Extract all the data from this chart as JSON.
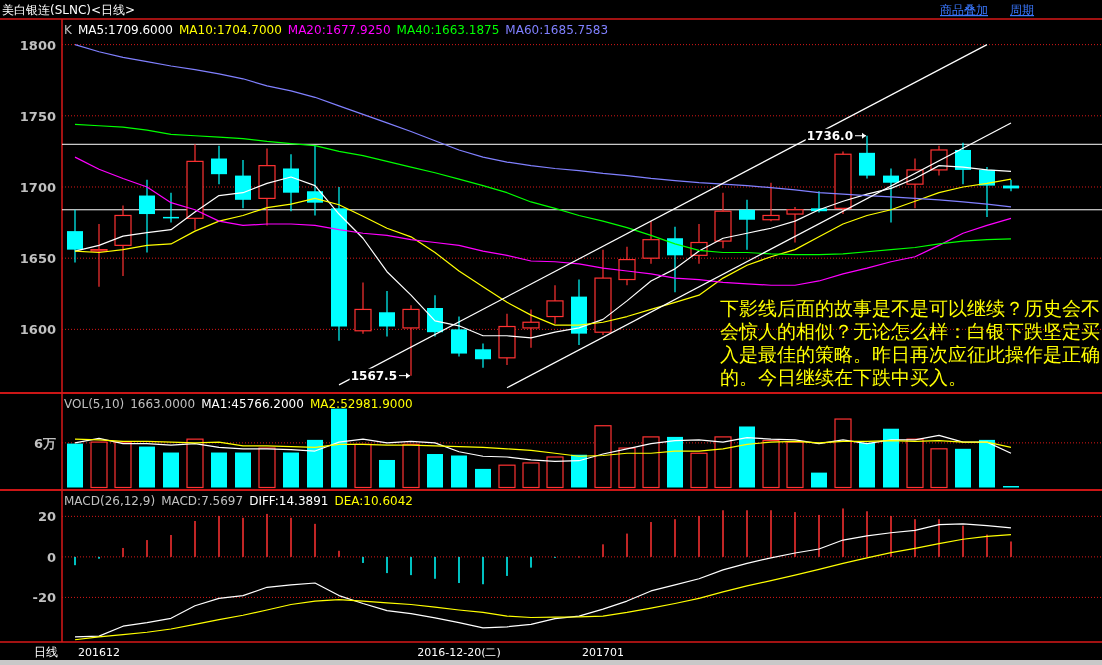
{
  "chart_data": [
    {
      "type": "candlestick",
      "title": "美白银连(SLNC)<日线>",
      "categories": [
        null,
        null,
        null,
        null,
        null,
        null,
        null,
        null,
        null,
        null,
        null,
        null,
        null,
        null,
        null,
        null,
        null,
        null,
        null,
        null,
        null,
        null,
        null,
        null,
        null,
        null,
        null,
        null,
        null,
        null,
        null,
        null,
        null,
        null,
        null,
        null,
        null,
        null,
        null,
        null
      ],
      "ylim": [
        1556,
        1818
      ],
      "yticks": [
        1600,
        1650,
        1700,
        1750,
        1800
      ],
      "grid": "y",
      "legend": "top left",
      "tick_labels": "y",
      "series": [
        {
          "type": "line",
          "name": "MA5:1709.6000",
          "color": "#ffffff",
          "values": [
            1655,
            1659,
            1665.5,
            1668,
            1670,
            1682.5,
            1694,
            1696,
            1702.5,
            1707,
            1701,
            1681,
            1664,
            1640.5,
            1624,
            1606,
            1602.5,
            1595.5,
            1595.5,
            1594,
            1598,
            1601,
            1607,
            1620,
            1634,
            1642.5,
            1655,
            1664,
            1667.5,
            1671,
            1676,
            1684,
            1690,
            1695,
            1699,
            1706,
            1715,
            1714,
            1712,
            1711
          ]
        },
        {
          "type": "line",
          "name": "MA10:1704.7000",
          "color": "#ffff00",
          "values": [
            1655,
            1654,
            1656,
            1659,
            1660,
            1669,
            1676,
            1680,
            1685.5,
            1688,
            1692,
            1687.5,
            1679.5,
            1671,
            1665,
            1654,
            1641,
            1630,
            1619,
            1610,
            1603,
            1603,
            1605,
            1609,
            1614,
            1619,
            1624,
            1636,
            1645,
            1651,
            1656,
            1665,
            1674,
            1680,
            1684,
            1690,
            1696,
            1700,
            1702.5,
            1705.5
          ]
        },
        {
          "type": "line",
          "name": "MA20:1677.9250",
          "color": "#ff00ff",
          "values": [
            1721,
            1712.5,
            1706,
            1700,
            1689,
            1684,
            1676,
            1673,
            1674,
            1674,
            1673,
            1670,
            1667.5,
            1666,
            1663,
            1661,
            1659,
            1655,
            1652,
            1648,
            1647.5,
            1646,
            1643,
            1641,
            1639,
            1636,
            1635,
            1633,
            1632,
            1631,
            1631,
            1634,
            1639,
            1643,
            1647.5,
            1651,
            1659,
            1667.5,
            1673,
            1678
          ]
        },
        {
          "type": "line",
          "name": "MA40:1663.1875",
          "color": "#00ff00",
          "values": [
            1744,
            1743,
            1742,
            1740,
            1737,
            1736,
            1735,
            1734,
            1732,
            1730.5,
            1729,
            1725,
            1722,
            1718,
            1714,
            1710,
            1705.5,
            1701,
            1696,
            1689.5,
            1685,
            1680,
            1676,
            1671.5,
            1666,
            1660,
            1655.5,
            1654,
            1654,
            1653,
            1652.5,
            1652.5,
            1653,
            1654.5,
            1656,
            1657.5,
            1660,
            1662,
            1663,
            1663.5
          ]
        },
        {
          "type": "line",
          "name": "MA60:1685.7583",
          "color": "#8080ff",
          "values": [
            1800,
            1795,
            1791,
            1788,
            1785,
            1782.5,
            1779.5,
            1776,
            1771,
            1767.5,
            1763,
            1757,
            1751,
            1745,
            1739,
            1732.5,
            1726,
            1721,
            1717.5,
            1715,
            1713,
            1711.5,
            1709.5,
            1708,
            1706,
            1704.5,
            1703,
            1702,
            1701,
            1699.5,
            1698,
            1696,
            1695,
            1694,
            1693,
            1692,
            1691,
            1689.5,
            1688,
            1686
          ]
        },
        {
          "type": "line",
          "color": "#ffffff",
          "values": [
            null,
            null,
            null,
            null,
            null,
            null,
            null,
            null,
            null,
            null,
            null,
            1561,
            null,
            null,
            null,
            null,
            null,
            null,
            null,
            null,
            null,
            null,
            null,
            null,
            null,
            null,
            null,
            null,
            null,
            null,
            null,
            null,
            null,
            null,
            null,
            null,
            null,
            null,
            1800,
            null
          ]
        },
        {
          "type": "line",
          "color": "#ffffff",
          "values": [
            null,
            null,
            null,
            null,
            null,
            null,
            null,
            null,
            null,
            null,
            null,
            null,
            null,
            null,
            null,
            null,
            null,
            null,
            1559,
            null,
            null,
            null,
            null,
            null,
            null,
            null,
            null,
            null,
            null,
            null,
            null,
            null,
            null,
            null,
            null,
            null,
            null,
            null,
            null,
            1745
          ]
        },
        {
          "colors": [
            "#00ffff",
            "#ff3232",
            "#ff3232",
            "#00ffff",
            "#00ffff",
            "#ff3232",
            "#00ffff",
            "#00ffff",
            "#ff3232",
            "#00ffff",
            "#00ffff",
            "#00ffff",
            "#ff3232",
            "#00ffff",
            "#ff3232",
            "#00ffff",
            "#00ffff",
            "#00ffff",
            "#ff3232",
            "#ff3232",
            "#ff3232",
            "#00ffff",
            "#ff3232",
            "#ff3232",
            "#ff3232",
            "#00ffff",
            "#ff3232",
            "#ff3232",
            "#00ffff",
            "#ff3232",
            "#ff3232",
            "#00ffff",
            "#ff3232",
            "#00ffff",
            "#00ffff",
            "#ff3232",
            "#ff3232",
            "#00ffff",
            "#00ffff",
            "#00ffff"
          ],
          "ohlc": [
            [
              1669,
              1684,
              1647,
              1656
            ],
            [
              1655,
              1674,
              1630,
              1656
            ],
            [
              1659,
              1687,
              1637.5,
              1680
            ],
            [
              1694,
              1705,
              1654,
              1681
            ],
            [
              1679,
              1696,
              1675,
              1678
            ],
            [
              1678,
              1730,
              1670,
              1718
            ],
            [
              1720,
              1729,
              1702,
              1709
            ],
            [
              1708,
              1719,
              1685,
              1691
            ],
            [
              1692,
              1727,
              1673,
              1715
            ],
            [
              1713,
              1723,
              1683,
              1696
            ],
            [
              1697,
              1729,
              1680,
              1689
            ],
            [
              1685,
              1700,
              1592,
              1602
            ],
            [
              1599,
              1633,
              1597,
              1614
            ],
            [
              1612,
              1627,
              1595,
              1602
            ],
            [
              1601,
              1617,
              1567.5,
              1614
            ],
            [
              1615,
              1624,
              1595,
              1598
            ],
            [
              1600,
              1609,
              1581,
              1583
            ],
            [
              1586,
              1590,
              1573,
              1579
            ],
            [
              1580,
              1611,
              1575,
              1602
            ],
            [
              1601,
              1614,
              1587,
              1605
            ],
            [
              1609,
              1631,
              1604,
              1620
            ],
            [
              1623,
              1635,
              1589,
              1597
            ],
            [
              1598,
              1656,
              1596,
              1636
            ],
            [
              1635,
              1658,
              1631,
              1649
            ],
            [
              1650,
              1676,
              1646,
              1663
            ],
            [
              1664,
              1672,
              1626,
              1652
            ],
            [
              1652,
              1674,
              1646,
              1661
            ],
            [
              1662,
              1696,
              1657,
              1683
            ],
            [
              1684,
              1691,
              1656,
              1677
            ],
            [
              1677,
              1703,
              1676,
              1680
            ],
            [
              1681,
              1686,
              1661,
              1684
            ],
            [
              1685,
              1697,
              1682,
              1683
            ],
            [
              1685,
              1725,
              1681,
              1723
            ],
            [
              1724,
              1736,
              1706,
              1708
            ],
            [
              1708,
              1713,
              1675,
              1703
            ],
            [
              1702,
              1720,
              1685,
              1712
            ],
            [
              1712,
              1729,
              1708,
              1726
            ],
            [
              1726,
              1731,
              1702,
              1712
            ],
            [
              1712,
              1714,
              1679,
              1701
            ],
            [
              1701,
              1705,
              1697,
              1699
            ]
          ]
        }
      ],
      "ref_lines": [
        {
          "axis": "y",
          "value": 1730,
          "color": "#ffffff"
        },
        {
          "axis": "y",
          "value": 1684,
          "color": "#ffffff"
        }
      ],
      "annotations": [
        "K",
        "下影线后面的故事是不是可以继续？历史会不会惊人的相似？无论怎么样：白银下跌坚定买入是最佳的策略。昨日再次应征此操作是正确的。今日继续在下跌中买入。",
        "1567.5",
        "1736.0",
        "商品叠加",
        "周期"
      ]
    },
    {
      "type": "bar",
      "title": "VOL(5,10)",
      "categories": [
        null,
        null,
        null,
        null,
        null,
        null,
        null,
        null,
        null,
        null,
        null,
        null,
        null,
        null,
        null,
        null,
        null,
        null,
        null,
        null,
        null,
        null,
        null,
        null,
        null,
        null,
        null,
        null,
        null,
        null,
        null,
        null,
        null,
        null,
        null,
        null,
        null,
        null,
        null,
        null
      ],
      "ylim": [
        0,
        12.7
      ],
      "yticks": [
        {
          "value": 6,
          "label": "6万"
        }
      ],
      "ref_lines": [
        {
          "axis": "y",
          "value": 6,
          "color": "#d81818",
          "line_style": "dotted"
        }
      ],
      "legend": "top left",
      "tick_labels": "y",
      "series": [
        {
          "name": "1663.0000",
          "colors": [
            "#00ffff",
            "#ff3232",
            "#ff3232",
            "#00ffff",
            "#00ffff",
            "#ff3232",
            "#00ffff",
            "#00ffff",
            "#ff3232",
            "#00ffff",
            "#00ffff",
            "#00ffff",
            "#ff3232",
            "#00ffff",
            "#ff3232",
            "#00ffff",
            "#00ffff",
            "#00ffff",
            "#ff3232",
            "#ff3232",
            "#ff3232",
            "#00ffff",
            "#ff3232",
            "#ff3232",
            "#ff3232",
            "#00ffff",
            "#ff3232",
            "#ff3232",
            "#00ffff",
            "#ff3232",
            "#ff3232",
            "#00ffff",
            "#ff3232",
            "#00ffff",
            "#00ffff",
            "#ff3232",
            "#ff3232",
            "#00ffff",
            "#00ffff",
            "#00ffff"
          ],
          "values": [
            5.9,
            6.1,
            6.1,
            5.5,
            4.7,
            6.5,
            4.7,
            4.7,
            5.3,
            4.7,
            6.4,
            10.6,
            5.8,
            3.7,
            5.8,
            4.5,
            4.3,
            2.5,
            3.0,
            3.3,
            4.1,
            4.4,
            8.3,
            5.3,
            6.8,
            6.8,
            4.6,
            6.8,
            8.2,
            6.3,
            6.1,
            2.0,
            9.2,
            6.0,
            7.9,
            6.5,
            5.2,
            5.2,
            6.4,
            0.2
          ]
        },
        {
          "type": "line",
          "name": "MA1:45766.2000",
          "color": "#ffffff",
          "values": [
            6.0,
            6.6,
            5.9,
            5.9,
            5.7,
            5.9,
            5.4,
            5.2,
            5.2,
            5.1,
            4.9,
            6.1,
            6.5,
            6.0,
            6.2,
            6.0,
            4.8,
            4.2,
            4.1,
            3.7,
            3.5,
            3.6,
            4.5,
            5.2,
            5.9,
            6.3,
            6.4,
            6.1,
            6.7,
            6.5,
            6.4,
            5.9,
            6.4,
            5.9,
            6.4,
            6.4,
            7.0,
            6.1,
            6.1,
            4.6
          ]
        },
        {
          "type": "line",
          "name": "MA2:52981.9000",
          "color": "#ffff00",
          "values": [
            6.5,
            6.4,
            6.2,
            6.2,
            6.1,
            6.0,
            6.1,
            5.6,
            5.6,
            5.5,
            5.4,
            5.8,
            5.8,
            5.7,
            5.7,
            5.6,
            5.5,
            5.4,
            5.2,
            5.0,
            4.6,
            4.2,
            4.3,
            4.6,
            4.6,
            4.9,
            4.9,
            5.2,
            5.8,
            6.1,
            6.2,
            6.0,
            6.2,
            6.2,
            6.3,
            6.2,
            6.3,
            6.1,
            6.1,
            5.4
          ]
        }
      ]
    },
    {
      "type": "bar",
      "title": "MACD(26,12,9)",
      "categories": [
        null,
        "201612",
        null,
        null,
        null,
        null,
        null,
        null,
        null,
        null,
        null,
        null,
        null,
        null,
        null,
        null,
        "2016-12-20(二)",
        null,
        null,
        null,
        null,
        null,
        "201701",
        null,
        null,
        null,
        null,
        null,
        null,
        null,
        null,
        null,
        null,
        null,
        null,
        null,
        null,
        null,
        null,
        null
      ],
      "ylim": [
        -42,
        33
      ],
      "yticks": [
        -20,
        0,
        20
      ],
      "grid": "y",
      "legend": "top left",
      "series": [
        {
          "name": "MACD:7.5697",
          "colors": [
            "#00ffff",
            "#00ffff",
            "#ff3232",
            "#ff3232",
            "#ff3232",
            "#ff3232",
            "#ff3232",
            "#ff3232",
            "#ff3232",
            "#ff3232",
            "#ff3232",
            "#ff3232",
            "#00ffff",
            "#00ffff",
            "#00ffff",
            "#00ffff",
            "#00ffff",
            "#00ffff",
            "#00ffff",
            "#00ffff",
            "#00ffff",
            "#ff3232",
            "#ff3232",
            "#ff3232",
            "#ff3232",
            "#ff3232",
            "#ff3232",
            "#ff3232",
            "#ff3232",
            "#ff3232",
            "#ff3232",
            "#ff3232",
            "#ff3232",
            "#ff3232",
            "#ff3232",
            "#ff3232",
            "#ff3232",
            "#ff3232",
            "#ff3232",
            "#ff3232"
          ],
          "values": [
            -4.1,
            -0.9,
            4.4,
            8.3,
            10.8,
            17.7,
            20.2,
            19.3,
            21.2,
            19.3,
            16.3,
            3,
            -3,
            -8,
            -9,
            -10.8,
            -12.9,
            -13.5,
            -9.4,
            -5.3,
            -0.2,
            0.2,
            6.2,
            11.5,
            17.2,
            18.6,
            20.2,
            23,
            23,
            23,
            22.1,
            20.7,
            23.9,
            22.5,
            20.2,
            18.6,
            18.6,
            15.4,
            11,
            7.6
          ]
        },
        {
          "type": "line",
          "name": "DIFF:14.3891",
          "color": "#ffffff",
          "values": [
            -39.5,
            -39.1,
            -34.2,
            -32.4,
            -30.3,
            -24.1,
            -20.5,
            -19.1,
            -15,
            -13.8,
            -12.9,
            -19.1,
            -23,
            -26.5,
            -28,
            -30.1,
            -32.4,
            -35,
            -34.5,
            -33.3,
            -30.5,
            -29.2,
            -25.8,
            -21.8,
            -16.8,
            -13.8,
            -10.8,
            -6.4,
            -3.2,
            -0.5,
            1.9,
            3.9,
            8.3,
            10.4,
            11.9,
            13.1,
            15.9,
            16.3,
            15.4,
            14.3
          ]
        },
        {
          "type": "line",
          "name": "DEA:10.6042",
          "color": "#ffff00",
          "values": [
            -40.9,
            -39.5,
            -38.4,
            -37.2,
            -35.6,
            -33.3,
            -31,
            -28.8,
            -26.2,
            -23.5,
            -21.8,
            -21.1,
            -21.8,
            -22.7,
            -23.5,
            -24.8,
            -26.2,
            -27.4,
            -29.2,
            -29.9,
            -29.7,
            -29.6,
            -29.2,
            -27.4,
            -25.3,
            -23,
            -20.5,
            -17.3,
            -14.3,
            -11.7,
            -9,
            -6.2,
            -3.2,
            -0.5,
            2.1,
            4.2,
            6.5,
            8.7,
            10.1,
            11
          ]
        }
      ],
      "annotations": [
        "日线"
      ]
    }
  ]
}
